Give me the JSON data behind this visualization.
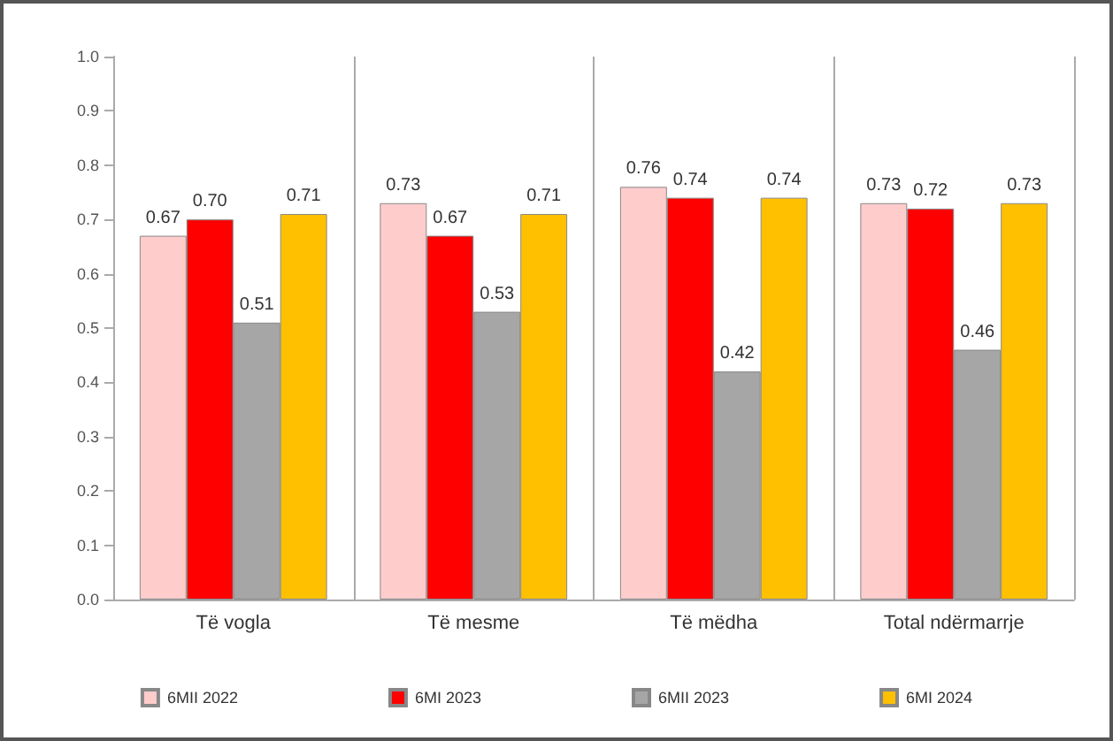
{
  "chart_data": {
    "type": "bar",
    "categories": [
      "Të vogla",
      "Të mesme",
      "Të mëdha",
      "Total ndërmarrje"
    ],
    "series": [
      {
        "name": "6MII 2022",
        "color": "#ffcccc",
        "values": [
          0.67,
          0.73,
          0.76,
          0.73
        ],
        "value_labels": [
          "0.67",
          "0.73",
          "0.76",
          "0.73"
        ]
      },
      {
        "name": "6MI 2023",
        "color": "#ff0000",
        "values": [
          0.7,
          0.67,
          0.74,
          0.72
        ],
        "value_labels": [
          "0.70",
          "0.67",
          "0.74",
          "0.72"
        ]
      },
      {
        "name": "6MII 2023",
        "color": "#a6a6a6",
        "values": [
          0.51,
          0.53,
          0.42,
          0.46
        ],
        "value_labels": [
          "0.51",
          "0.53",
          "0.42",
          "0.46"
        ]
      },
      {
        "name": "6MI 2024",
        "color": "#ffc000",
        "values": [
          0.71,
          0.71,
          0.74,
          0.73
        ],
        "value_labels": [
          "0.71",
          "0.71",
          "0.74",
          "0.73"
        ]
      }
    ],
    "ylim": [
      0,
      1
    ],
    "yticks": [
      {
        "value": 0,
        "label": "0.0"
      },
      {
        "value": 0.1,
        "label": "0.1"
      },
      {
        "value": 0.2,
        "label": "0.2"
      },
      {
        "value": 0.3,
        "label": "0.3"
      },
      {
        "value": 0.4,
        "label": "0.4"
      },
      {
        "value": 0.5,
        "label": "0.5"
      },
      {
        "value": 0.6,
        "label": "0.6"
      },
      {
        "value": 0.7,
        "label": "0.7"
      },
      {
        "value": 0.8,
        "label": "0.8"
      },
      {
        "value": 0.9,
        "label": "0.9"
      },
      {
        "value": 1,
        "label": "1.0"
      }
    ],
    "grid": "x",
    "legend": "bottom"
  }
}
